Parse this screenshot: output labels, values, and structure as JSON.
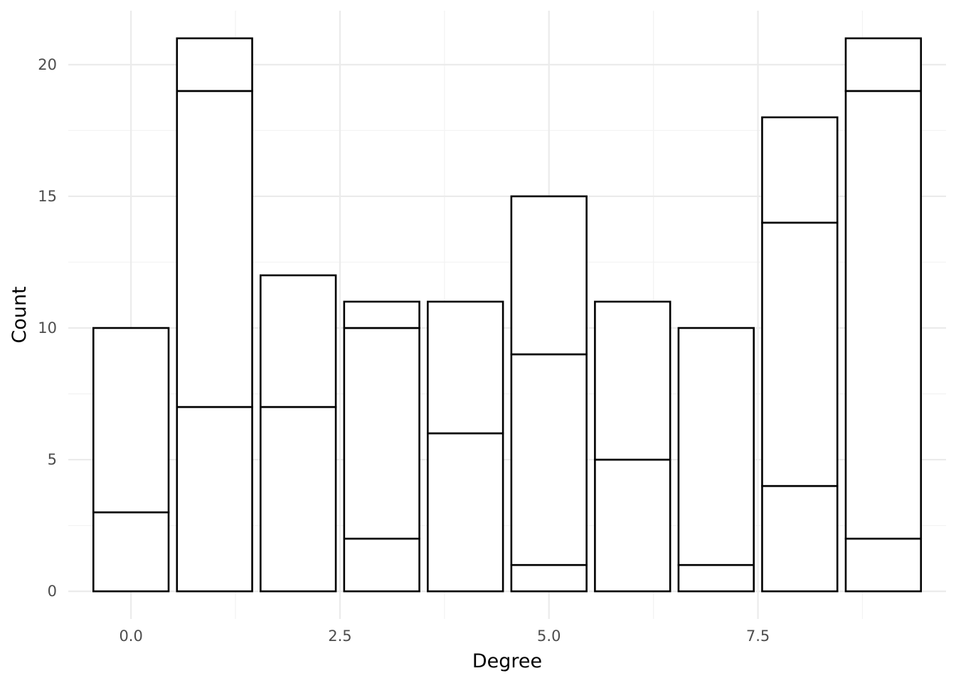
{
  "chart_data": {
    "type": "bar",
    "stacked": true,
    "xlabel": "Degree",
    "ylabel": "Count",
    "x": [
      0,
      1,
      2,
      3,
      4,
      5,
      6,
      7,
      8,
      9
    ],
    "segments": [
      [
        3,
        7
      ],
      [
        7,
        12,
        2
      ],
      [
        7,
        5
      ],
      [
        2,
        8,
        1
      ],
      [
        6,
        5
      ],
      [
        1,
        8,
        6
      ],
      [
        5,
        6
      ],
      [
        1,
        9
      ],
      [
        4,
        10,
        4
      ],
      [
        2,
        17,
        2
      ]
    ],
    "totals": [
      10,
      21,
      12,
      11,
      11,
      15,
      11,
      10,
      18,
      21
    ],
    "xlim": [
      -0.75,
      9.75
    ],
    "ylim": [
      -1.05,
      22.05
    ],
    "x_ticks": [
      0,
      2.5,
      5,
      7.5
    ],
    "x_tick_labels": [
      "0.0",
      "2.5",
      "5.0",
      "7.5"
    ],
    "y_ticks": [
      0,
      5,
      10,
      15,
      20
    ],
    "y_tick_labels": [
      "0",
      "5",
      "10",
      "15",
      "20"
    ],
    "bar_width": 0.9,
    "bar_fill": "#ffffff",
    "bar_outline": "#000000",
    "grid": true,
    "legend": "none"
  }
}
